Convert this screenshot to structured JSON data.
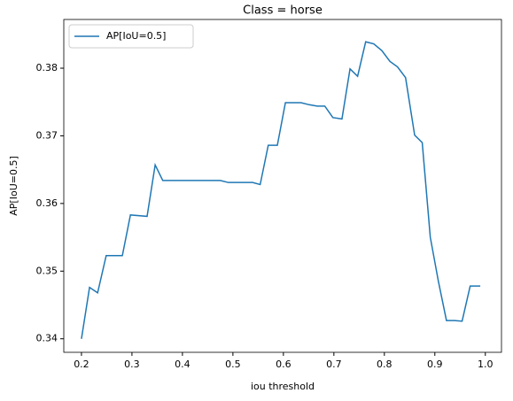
{
  "chart_data": {
    "type": "line",
    "title": "Class = horse",
    "xlabel": "iou threshold",
    "ylabel": "AP[IoU=0.5]",
    "x": [
      0.2,
      0.216,
      0.232,
      0.249,
      0.281,
      0.297,
      0.33,
      0.346,
      0.361,
      0.475,
      0.491,
      0.539,
      0.554,
      0.57,
      0.588,
      0.604,
      0.635,
      0.651,
      0.667,
      0.682,
      0.698,
      0.716,
      0.732,
      0.747,
      0.763,
      0.779,
      0.795,
      0.811,
      0.826,
      0.842,
      0.86,
      0.875,
      0.891,
      0.907,
      0.923,
      0.939,
      0.954,
      0.97,
      0.99
    ],
    "series": [
      {
        "name": "AP[IoU=0.5]",
        "color": "#1f77b4",
        "values": [
          0.34,
          0.3476,
          0.3468,
          0.3523,
          0.3523,
          0.3583,
          0.3581,
          0.3657,
          0.3634,
          0.3634,
          0.3631,
          0.3631,
          0.3628,
          0.3686,
          0.3686,
          0.3749,
          0.3749,
          0.3746,
          0.3744,
          0.3744,
          0.3727,
          0.3725,
          0.3799,
          0.3788,
          0.3839,
          0.3836,
          0.3826,
          0.381,
          0.3802,
          0.3786,
          0.3701,
          0.369,
          0.355,
          0.3485,
          0.3427,
          0.3427,
          0.3426,
          0.3478,
          0.3478
        ]
      }
    ],
    "xlim": [
      0.165,
      1.032
    ],
    "ylim": [
      0.338,
      0.3872
    ],
    "xticks": [
      0.2,
      0.3,
      0.4,
      0.5,
      0.6,
      0.7,
      0.8,
      0.9,
      {
        "value": 1,
        "label": "1.0"
      }
    ],
    "yticks": [
      0.34,
      0.35,
      0.36,
      0.37,
      0.38
    ],
    "legend": "upper left"
  }
}
